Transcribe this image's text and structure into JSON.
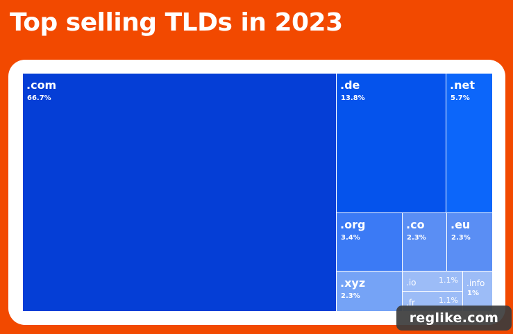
{
  "page": {
    "title": "Top selling TLDs in 2023",
    "watermark": "reglike.com",
    "background_color": "#f24900"
  },
  "chart_data": {
    "type": "treemap",
    "title": "Top selling TLDs in 2023",
    "unit": "%",
    "items": [
      {
        "name": ".com",
        "value": 66.7,
        "label": "66.7%",
        "color": "#053ed6"
      },
      {
        "name": ".de",
        "value": 13.8,
        "label": "13.8%",
        "color": "#0553ec"
      },
      {
        "name": ".net",
        "value": 5.7,
        "label": "5.7%",
        "color": "#0c66fa"
      },
      {
        "name": ".org",
        "value": 3.4,
        "label": "3.4%",
        "color": "#3b7af5"
      },
      {
        "name": ".co",
        "value": 2.3,
        "label": "2.3%",
        "color": "#5a8ef4"
      },
      {
        "name": ".eu",
        "value": 2.3,
        "label": "2.3%",
        "color": "#5a8ef4"
      },
      {
        "name": ".xyz",
        "value": 2.3,
        "label": "2.3%",
        "color": "#75a3f6"
      },
      {
        "name": ".io",
        "value": 1.1,
        "label": "1.1%",
        "color": "#9cbcf7"
      },
      {
        "name": ".fr",
        "value": 1.1,
        "label": "1.1%",
        "color": "#9cbcf7"
      },
      {
        "name": ".info",
        "value": 1.0,
        "label": "1%",
        "color": "#9cbcf7"
      }
    ]
  }
}
